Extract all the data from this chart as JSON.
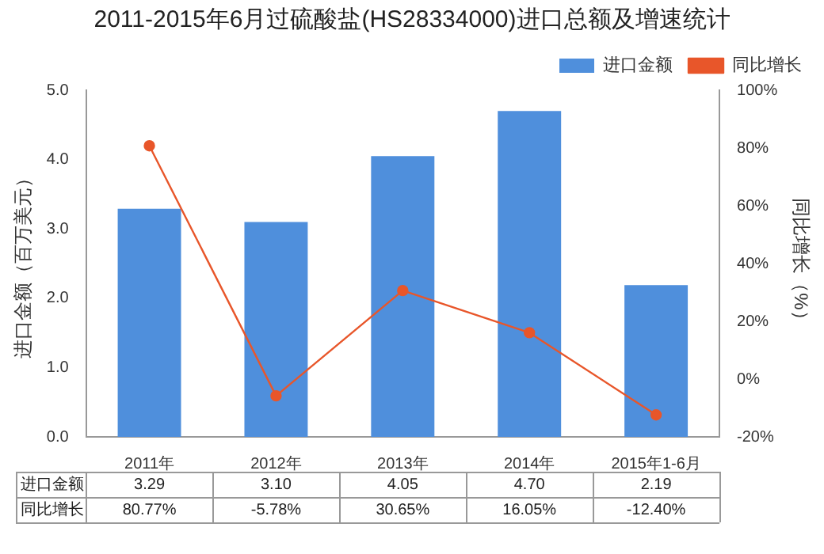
{
  "chart_data": {
    "type": "bar",
    "title": "2011-2015年6月过硫酸盐(HS28334000)进口总额及增速统计",
    "ylabel": "进口金额（百万美元）",
    "y2label": "同比增长（%）",
    "categories": [
      "2011年",
      "2012年",
      "2013年",
      "2014年",
      "2015年1-6月"
    ],
    "series": [
      {
        "name": "进口金额",
        "color": "#4f8fdc",
        "values": [
          3.29,
          3.1,
          4.05,
          4.7,
          2.19
        ],
        "value_labels": [
          "3.29",
          "3.10",
          "4.05",
          "4.70",
          "2.19"
        ]
      },
      {
        "name": "同比增长",
        "type": "line",
        "axis": "y2",
        "color": "#e8562a",
        "marker": "circle",
        "values": [
          80.77,
          -5.78,
          30.65,
          16.05,
          -12.4
        ],
        "value_labels": [
          "80.77%",
          "-5.78%",
          "30.65%",
          "16.05%",
          "-12.40%"
        ]
      }
    ],
    "ylim": [
      0,
      5
    ],
    "yticks": [
      {
        "value": 0,
        "label": "0.0"
      },
      {
        "value": 1,
        "label": "1.0"
      },
      {
        "value": 2,
        "label": "2.0"
      },
      {
        "value": 3,
        "label": "3.0"
      },
      {
        "value": 4,
        "label": "4.0"
      },
      {
        "value": 5,
        "label": "5.0"
      }
    ],
    "y2lim": [
      -20,
      100
    ],
    "y2ticks": [
      {
        "value": -20,
        "label": "-20%"
      },
      {
        "value": 0,
        "label": "0%"
      },
      {
        "value": 20,
        "label": "20%"
      },
      {
        "value": 40,
        "label": "40%"
      },
      {
        "value": 60,
        "label": "60%"
      },
      {
        "value": 80,
        "label": "80%"
      },
      {
        "value": 100,
        "label": "100%"
      }
    ],
    "legend": "top right",
    "grid": false
  }
}
